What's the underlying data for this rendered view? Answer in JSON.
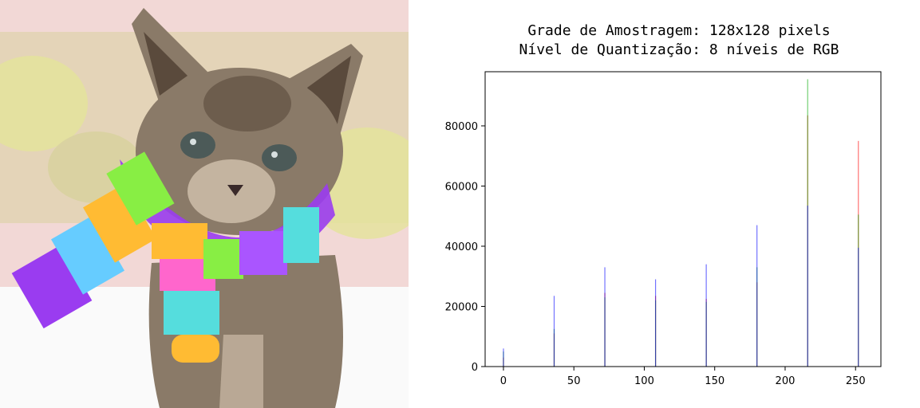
{
  "image": {
    "subject_icon": "pixelated-kitten-with-rainbow-scarf",
    "colors": {
      "bg_top": "#f2d8d6",
      "bg_mid": "#d8d2a0",
      "bg_yellow": "#e4e49a",
      "bg_bottom": "#fafafa",
      "fur": "#8a7a68",
      "fur_dark": "#5a4a3c",
      "fur_light": "#c4b4a0",
      "eye": "#4c5a58",
      "scarf": [
        "#9a3cf0",
        "#ff66cc",
        "#66ccff",
        "#88ee44",
        "#ffbb33",
        "#aa55ff",
        "#55dddd"
      ]
    }
  },
  "chart_data": {
    "type": "histogram",
    "title_lines": [
      "Grade de Amostragem: 128x128 pixels",
      "Nível de Quantização: 8 níveis de RGB"
    ],
    "xlabel": "",
    "ylabel": "",
    "xlim": [
      -13,
      268
    ],
    "ylim": [
      0,
      98000
    ],
    "x_ticks": [
      0,
      50,
      100,
      150,
      200,
      250
    ],
    "y_ticks": [
      0,
      20000,
      40000,
      60000,
      80000
    ],
    "grid": false,
    "legend": "none",
    "bins": [
      0,
      36,
      72,
      108,
      144,
      180,
      216,
      252
    ],
    "series": [
      {
        "color": "#ff0000",
        "values": [
          3000,
          11000,
          24500,
          23500,
          22500,
          28000,
          83500,
          75000
        ]
      },
      {
        "color": "#00aa00",
        "values": [
          5000,
          12500,
          23000,
          22000,
          21500,
          33000,
          95500,
          50500
        ]
      },
      {
        "color": "#0000ff",
        "values": [
          6000,
          23500,
          33000,
          29000,
          34000,
          47000,
          53500,
          39500
        ]
      }
    ]
  }
}
